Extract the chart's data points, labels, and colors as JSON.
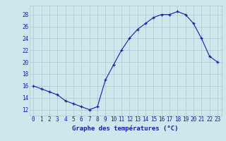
{
  "hours": [
    0,
    1,
    2,
    3,
    4,
    5,
    6,
    7,
    8,
    9,
    10,
    11,
    12,
    13,
    14,
    15,
    16,
    17,
    18,
    19,
    20,
    21,
    22,
    23
  ],
  "temperatures": [
    16.0,
    15.5,
    15.0,
    14.5,
    13.5,
    13.0,
    12.5,
    12.0,
    12.5,
    17.0,
    19.5,
    22.0,
    24.0,
    25.5,
    26.5,
    27.5,
    28.0,
    28.0,
    28.5,
    28.0,
    26.5,
    24.0,
    21.0,
    20.0
  ],
  "line_color": "#1a1aaa",
  "marker": "+",
  "marker_size": 3,
  "background_color": "#cce8ec",
  "grid_color": "#aac8cc",
  "xlabel": "Graphe des températures (°C)",
  "xlabel_color": "#1a1aaa",
  "xlabel_fontsize": 6.5,
  "tick_color": "#1a1aaa",
  "tick_fontsize": 5.5,
  "ylabel_ticks": [
    12,
    14,
    16,
    18,
    20,
    22,
    24,
    26,
    28
  ],
  "ylim": [
    11.0,
    29.5
  ],
  "xlim": [
    -0.5,
    23.5
  ]
}
